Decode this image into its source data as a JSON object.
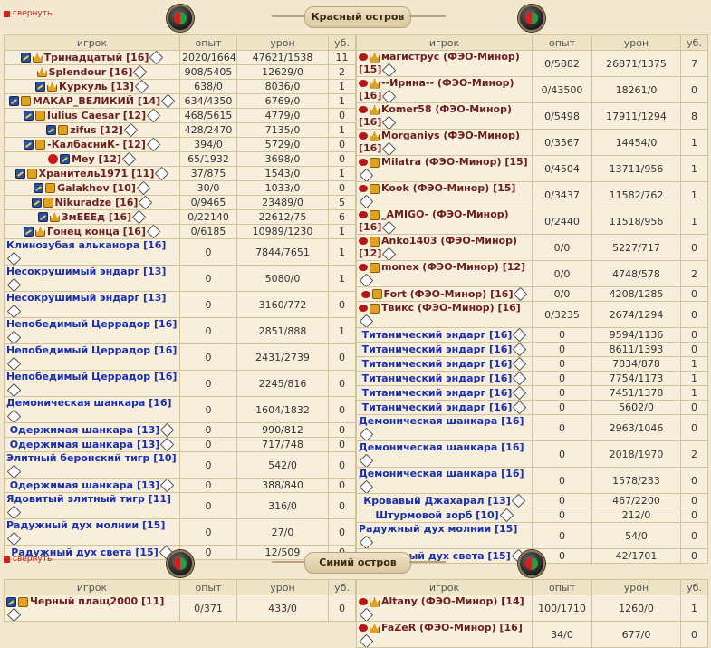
{
  "collapse_label": "свернуть",
  "red_title": "Красный остров",
  "blue_title": "Синий остров",
  "headers": {
    "player": "игрок",
    "exp": "опыт",
    "damage": "урон",
    "kills": "уб."
  },
  "colors": {
    "player": "#6b1f1f",
    "mob": "#1a2fb0"
  },
  "red_left": [
    {
      "name": "Тринадцатый",
      "lvl": "[16]",
      "exp": "2020/16640",
      "dmg": "47621/1538",
      "k": "11",
      "kind": "player",
      "icons": [
        "align",
        "clan2"
      ]
    },
    {
      "name": "Splendour",
      "lvl": "[16]",
      "exp": "908/5405",
      "dmg": "12629/0",
      "k": "2",
      "kind": "player",
      "icons": [
        "clan2"
      ]
    },
    {
      "name": "Куркуль",
      "lvl": "[13]",
      "exp": "638/0",
      "dmg": "8036/0",
      "k": "1",
      "kind": "player",
      "icons": [
        "align",
        "clan2"
      ]
    },
    {
      "name": "МАКАР_ВЕЛИКИЙ",
      "lvl": "[14]",
      "exp": "634/4350",
      "dmg": "6769/0",
      "k": "1",
      "kind": "player",
      "icons": [
        "align",
        "clan"
      ]
    },
    {
      "name": "Iulius Caesar",
      "lvl": "[12]",
      "exp": "468/5615",
      "dmg": "4779/0",
      "k": "0",
      "kind": "player",
      "icons": [
        "align",
        "clan"
      ]
    },
    {
      "name": "zifus",
      "lvl": "[12]",
      "exp": "428/2470",
      "dmg": "7135/0",
      "k": "1",
      "kind": "player",
      "icons": [
        "align",
        "clan"
      ]
    },
    {
      "name": "-КалбасниК-",
      "lvl": "[12]",
      "exp": "394/0",
      "dmg": "5729/0",
      "k": "0",
      "kind": "player",
      "icons": [
        "align",
        "clan"
      ]
    },
    {
      "name": "Mey",
      "lvl": "[12]",
      "exp": "65/1932",
      "dmg": "3698/0",
      "k": "0",
      "kind": "player",
      "icons": [
        "skull",
        "align"
      ]
    },
    {
      "name": "Хранитель1971",
      "lvl": "[11]",
      "exp": "37/875",
      "dmg": "1543/0",
      "k": "1",
      "kind": "player",
      "icons": [
        "align",
        "clan"
      ]
    },
    {
      "name": "Galakhov",
      "lvl": "[10]",
      "exp": "30/0",
      "dmg": "1033/0",
      "k": "0",
      "kind": "player",
      "icons": [
        "align",
        "clan"
      ]
    },
    {
      "name": "Nikuradze",
      "lvl": "[16]",
      "exp": "0/9465",
      "dmg": "23489/0",
      "k": "5",
      "kind": "player",
      "icons": [
        "align",
        "clan"
      ]
    },
    {
      "name": "ЗмЕЕЕд",
      "lvl": "[16]",
      "exp": "0/22140",
      "dmg": "22612/75",
      "k": "6",
      "kind": "player",
      "icons": [
        "align",
        "clan2"
      ]
    },
    {
      "name": "Гонец конца",
      "lvl": "[16]",
      "exp": "0/6185",
      "dmg": "10989/1230",
      "k": "1",
      "kind": "player",
      "icons": [
        "align",
        "clan2"
      ]
    },
    {
      "name": "Клинозубая альканора",
      "lvl": "[16]",
      "exp": "0",
      "dmg": "7844/7651",
      "k": "1",
      "kind": "mob",
      "icons": []
    },
    {
      "name": "Несокрушимый эндарг",
      "lvl": "[13]",
      "exp": "0",
      "dmg": "5080/0",
      "k": "1",
      "kind": "mob",
      "icons": []
    },
    {
      "name": "Несокрушимый эндарг",
      "lvl": "[13]",
      "exp": "0",
      "dmg": "3160/772",
      "k": "0",
      "kind": "mob",
      "icons": []
    },
    {
      "name": "Непобедимый Церрадор",
      "lvl": "[16]",
      "exp": "0",
      "dmg": "2851/888",
      "k": "1",
      "kind": "mob",
      "icons": []
    },
    {
      "name": "Непобедимый Церрадор",
      "lvl": "[16]",
      "exp": "0",
      "dmg": "2431/2739",
      "k": "0",
      "kind": "mob",
      "icons": []
    },
    {
      "name": "Непобедимый Церрадор",
      "lvl": "[16]",
      "exp": "0",
      "dmg": "2245/816",
      "k": "0",
      "kind": "mob",
      "icons": []
    },
    {
      "name": "Демоническая шанкара",
      "lvl": "[16]",
      "exp": "0",
      "dmg": "1604/1832",
      "k": "0",
      "kind": "mob",
      "icons": []
    },
    {
      "name": "Одержимая шанкара",
      "lvl": "[13]",
      "exp": "0",
      "dmg": "990/812",
      "k": "0",
      "kind": "mob",
      "icons": []
    },
    {
      "name": "Одержимая шанкара",
      "lvl": "[13]",
      "exp": "0",
      "dmg": "717/748",
      "k": "0",
      "kind": "mob",
      "icons": []
    },
    {
      "name": "Элитный беронский тигр",
      "lvl": "[10]",
      "exp": "0",
      "dmg": "542/0",
      "k": "0",
      "kind": "mob",
      "icons": []
    },
    {
      "name": "Одержимая шанкара",
      "lvl": "[13]",
      "exp": "0",
      "dmg": "388/840",
      "k": "0",
      "kind": "mob",
      "icons": []
    },
    {
      "name": "Ядовитый элитный тигр",
      "lvl": "[11]",
      "exp": "0",
      "dmg": "316/0",
      "k": "0",
      "kind": "mob",
      "icons": []
    },
    {
      "name": "Радужный дух молнии",
      "lvl": "[15]",
      "exp": "0",
      "dmg": "27/0",
      "k": "0",
      "kind": "mob",
      "icons": []
    },
    {
      "name": "Радужный дух света",
      "lvl": "[15]",
      "exp": "0",
      "dmg": "12/509",
      "k": "0",
      "kind": "mob",
      "icons": []
    }
  ],
  "red_right": [
    {
      "name": "магиструс (ФЭО-Минор)",
      "lvl": "[15]",
      "exp": "0/5882",
      "dmg": "26871/1375",
      "k": "7",
      "kind": "player",
      "icons": [
        "eye",
        "clan2"
      ]
    },
    {
      "name": "--Ирина-- (ФЭО-Минор)",
      "lvl": "[16]",
      "exp": "0/43500",
      "dmg": "18261/0",
      "k": "0",
      "kind": "player",
      "icons": [
        "eye",
        "clan2"
      ]
    },
    {
      "name": "Komer58 (ФЭО-Минор)",
      "lvl": "[16]",
      "exp": "0/5498",
      "dmg": "17911/1294",
      "k": "8",
      "kind": "player",
      "icons": [
        "eye",
        "clan2"
      ]
    },
    {
      "name": "Morganiys (ФЭО-Минор)",
      "lvl": "[16]",
      "exp": "0/3567",
      "dmg": "14454/0",
      "k": "1",
      "kind": "player",
      "icons": [
        "eye",
        "clan2"
      ]
    },
    {
      "name": "Milatra (ФЭО-Минор)",
      "lvl": "[15]",
      "exp": "0/4504",
      "dmg": "13711/956",
      "k": "1",
      "kind": "player",
      "icons": [
        "eye",
        "clan"
      ]
    },
    {
      "name": "Kook (ФЭО-Минор)",
      "lvl": "[15]",
      "exp": "0/3437",
      "dmg": "11582/762",
      "k": "1",
      "kind": "player",
      "icons": [
        "eye",
        "clan"
      ]
    },
    {
      "name": "_AMIGO- (ФЭО-Минор)",
      "lvl": "[16]",
      "exp": "0/2440",
      "dmg": "11518/956",
      "k": "1",
      "kind": "player",
      "icons": [
        "eye",
        "clan"
      ]
    },
    {
      "name": "Anko1403 (ФЭО-Минор)",
      "lvl": "[12]",
      "exp": "0/0",
      "dmg": "5227/717",
      "k": "0",
      "kind": "player",
      "icons": [
        "eye",
        "clan"
      ]
    },
    {
      "name": "monex (ФЭО-Минор)",
      "lvl": "[12]",
      "exp": "0/0",
      "dmg": "4748/578",
      "k": "2",
      "kind": "player",
      "icons": [
        "eye",
        "clan"
      ]
    },
    {
      "name": "Fort (ФЭО-Минор)",
      "lvl": "[16]",
      "exp": "0/0",
      "dmg": "4208/1285",
      "k": "0",
      "kind": "player",
      "icons": [
        "eye",
        "clan"
      ]
    },
    {
      "name": "Твикс (ФЭО-Минор)",
      "lvl": "[16]",
      "exp": "0/3235",
      "dmg": "2674/1294",
      "k": "0",
      "kind": "player",
      "icons": [
        "eye",
        "clan"
      ]
    },
    {
      "name": "Титанический эндарг",
      "lvl": "[16]",
      "exp": "0",
      "dmg": "9594/1136",
      "k": "0",
      "kind": "mob",
      "icons": []
    },
    {
      "name": "Титанический эндарг",
      "lvl": "[16]",
      "exp": "0",
      "dmg": "8611/1393",
      "k": "0",
      "kind": "mob",
      "icons": []
    },
    {
      "name": "Титанический эндарг",
      "lvl": "[16]",
      "exp": "0",
      "dmg": "7834/878",
      "k": "1",
      "kind": "mob",
      "icons": []
    },
    {
      "name": "Титанический эндарг",
      "lvl": "[16]",
      "exp": "0",
      "dmg": "7754/1173",
      "k": "1",
      "kind": "mob",
      "icons": []
    },
    {
      "name": "Титанический эндарг",
      "lvl": "[16]",
      "exp": "0",
      "dmg": "7451/1378",
      "k": "1",
      "kind": "mob",
      "icons": []
    },
    {
      "name": "Титанический эндарг",
      "lvl": "[16]",
      "exp": "0",
      "dmg": "5602/0",
      "k": "0",
      "kind": "mob",
      "icons": []
    },
    {
      "name": "Демоническая шанкара",
      "lvl": "[16]",
      "exp": "0",
      "dmg": "2963/1046",
      "k": "0",
      "kind": "mob",
      "icons": []
    },
    {
      "name": "Демоническая шанкара",
      "lvl": "[16]",
      "exp": "0",
      "dmg": "2018/1970",
      "k": "2",
      "kind": "mob",
      "icons": []
    },
    {
      "name": "Демоническая шанкара",
      "lvl": "[16]",
      "exp": "0",
      "dmg": "1578/233",
      "k": "0",
      "kind": "mob",
      "icons": []
    },
    {
      "name": "Кровавый Джахарал",
      "lvl": "[13]",
      "exp": "0",
      "dmg": "467/2200",
      "k": "0",
      "kind": "mob",
      "icons": []
    },
    {
      "name": "Штурмовой зорб",
      "lvl": "[10]",
      "exp": "0",
      "dmg": "212/0",
      "k": "0",
      "kind": "mob",
      "icons": []
    },
    {
      "name": "Радужный дух молнии",
      "lvl": "[15]",
      "exp": "0",
      "dmg": "54/0",
      "k": "0",
      "kind": "mob",
      "icons": []
    },
    {
      "name": "Радужный дух света",
      "lvl": "[15]",
      "exp": "0",
      "dmg": "42/1701",
      "k": "0",
      "kind": "mob",
      "icons": []
    }
  ],
  "blue_left": [
    {
      "name": "Черный плащ2000",
      "lvl": "[11]",
      "exp": "0/371",
      "dmg": "433/0",
      "k": "0",
      "kind": "player",
      "icons": [
        "align",
        "clan"
      ]
    }
  ],
  "blue_right": [
    {
      "name": "Altany (ФЭО-Минор)",
      "lvl": "[14]",
      "exp": "100/1710",
      "dmg": "1260/0",
      "k": "1",
      "kind": "player",
      "icons": [
        "eye",
        "clan2"
      ]
    },
    {
      "name": "FaZeR (ФЭО-Минор)",
      "lvl": "[16]",
      "exp": "34/0",
      "dmg": "677/0",
      "k": "0",
      "kind": "player",
      "icons": [
        "eye",
        "clan2"
      ]
    }
  ]
}
